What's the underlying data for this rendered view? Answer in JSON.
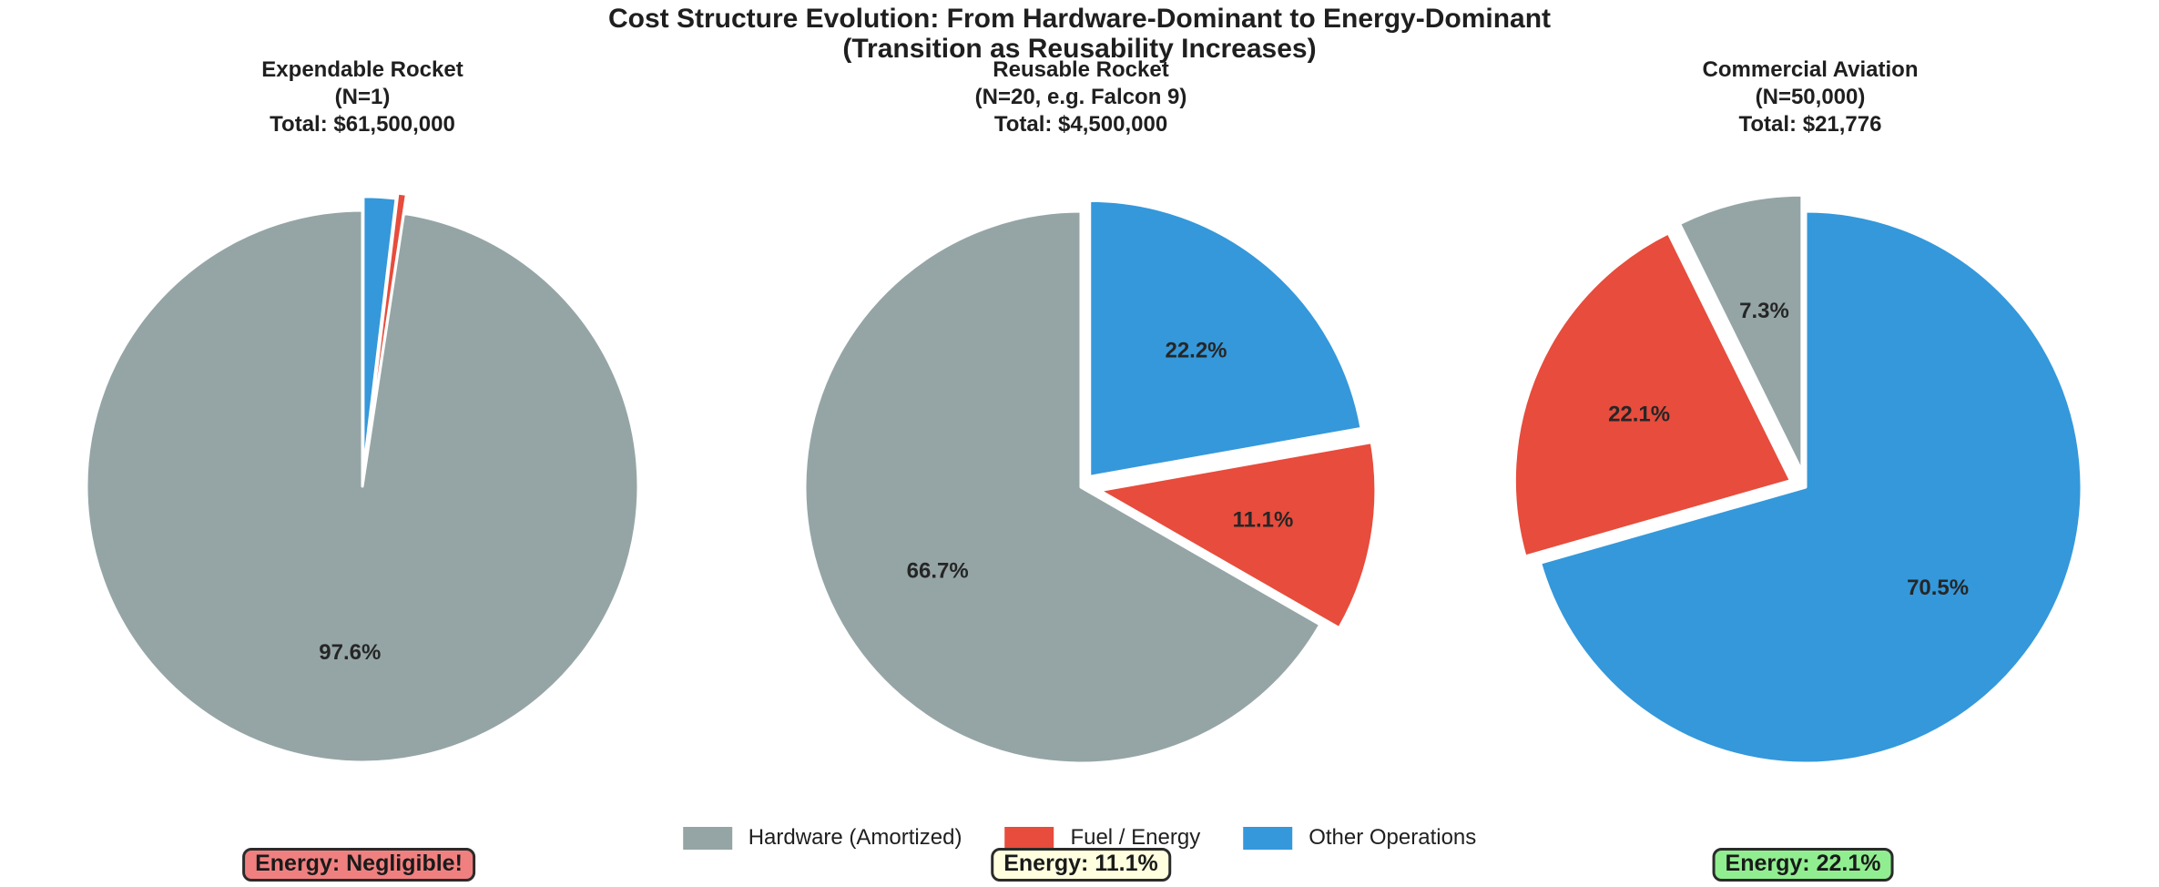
{
  "figure": {
    "suptitle_line1": "Cost Structure Evolution: From Hardware-Dominant to Energy-Dominant",
    "suptitle_line2": "(Transition as Reusability Increases)",
    "background_color": "#ffffff"
  },
  "palette": {
    "hardware": "#95a5a6",
    "fuel": "#e74c3c",
    "other": "#3498db",
    "wedge_edge": "#ffffff",
    "label_text": "#262626"
  },
  "legend": {
    "items": [
      {
        "key": "hardware",
        "label": "Hardware (Amortized)"
      },
      {
        "key": "fuel",
        "label": "Fuel / Energy"
      },
      {
        "key": "other",
        "label": "Other Operations"
      }
    ]
  },
  "chart_data": [
    {
      "type": "pie",
      "title_lines": [
        "Expendable Rocket",
        "(N=1)",
        "Total: $61,500,000"
      ],
      "slice_keys": [
        "hardware",
        "fuel",
        "other"
      ],
      "slice_labels": [
        "Hardware (Amortized)",
        "Fuel / Energy",
        "Other Operations"
      ],
      "values_pct": [
        97.6,
        0.5,
        1.9
      ],
      "pct_labels": [
        "97.6%",
        null,
        null
      ],
      "explode": [
        0,
        0.07,
        0.05
      ],
      "start_angle": 90,
      "counterclock": true,
      "annotation": {
        "text": "Energy: Negligible!",
        "bg": "#f08080"
      }
    },
    {
      "type": "pie",
      "title_lines": [
        "Reusable Rocket",
        "(N=20, e.g. Falcon 9)",
        "Total: $4,500,000"
      ],
      "slice_keys": [
        "hardware",
        "fuel",
        "other"
      ],
      "slice_labels": [
        "Hardware (Amortized)",
        "Fuel / Energy",
        "Other Operations"
      ],
      "values_pct": [
        66.7,
        11.1,
        22.2
      ],
      "pct_labels": [
        "66.7%",
        "11.1%",
        "22.2%"
      ],
      "explode": [
        0,
        0.07,
        0.05
      ],
      "start_angle": 90,
      "counterclock": true,
      "annotation": {
        "text": "Energy: 11.1%",
        "bg": "#ffffe0"
      }
    },
    {
      "type": "pie",
      "title_lines": [
        "Commercial Aviation",
        "(N=50,000)",
        "Total: $21,776"
      ],
      "slice_keys": [
        "hardware",
        "fuel",
        "other"
      ],
      "slice_labels": [
        "Hardware (Amortized)",
        "Fuel / Energy",
        "Other Operations"
      ],
      "values_pct": [
        7.3,
        22.1,
        70.5
      ],
      "pct_labels": [
        "7.3%",
        "22.1%",
        "70.5%"
      ],
      "explode": [
        0.06,
        0.06,
        0
      ],
      "start_angle": 90,
      "counterclock": true,
      "annotation": {
        "text": "Energy: 22.1%",
        "bg": "#90ee90"
      }
    }
  ]
}
